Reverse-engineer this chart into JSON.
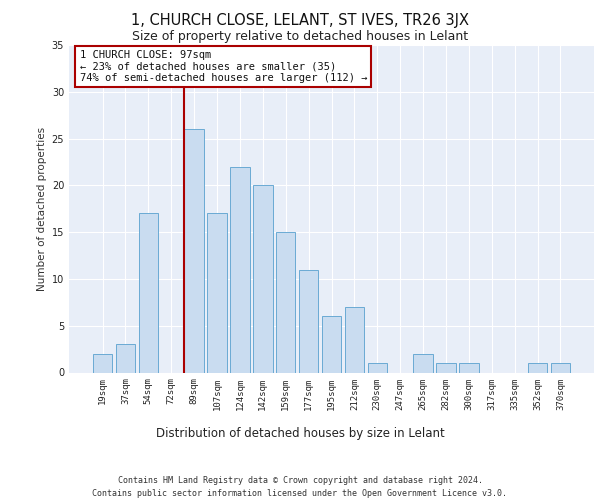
{
  "title1": "1, CHURCH CLOSE, LELANT, ST IVES, TR26 3JX",
  "title2": "Size of property relative to detached houses in Lelant",
  "xlabel": "Distribution of detached houses by size in Lelant",
  "ylabel": "Number of detached properties",
  "bar_labels": [
    "19sqm",
    "37sqm",
    "54sqm",
    "72sqm",
    "89sqm",
    "107sqm",
    "124sqm",
    "142sqm",
    "159sqm",
    "177sqm",
    "195sqm",
    "212sqm",
    "230sqm",
    "247sqm",
    "265sqm",
    "282sqm",
    "300sqm",
    "317sqm",
    "335sqm",
    "352sqm",
    "370sqm"
  ],
  "bar_values": [
    2,
    3,
    17,
    0,
    26,
    17,
    22,
    20,
    15,
    11,
    6,
    7,
    1,
    0,
    2,
    1,
    1,
    0,
    0,
    1,
    1
  ],
  "bar_color": "#c9dcf0",
  "bar_edgecolor": "#6aaad4",
  "vline_x_index": 4,
  "vline_color": "#aa0000",
  "annotation_text": "1 CHURCH CLOSE: 97sqm\n← 23% of detached houses are smaller (35)\n74% of semi-detached houses are larger (112) →",
  "annotation_box_edgecolor": "#aa0000",
  "ylim": [
    0,
    35
  ],
  "yticks": [
    0,
    5,
    10,
    15,
    20,
    25,
    30,
    35
  ],
  "footer": "Contains HM Land Registry data © Crown copyright and database right 2024.\nContains public sector information licensed under the Open Government Licence v3.0.",
  "plot_bg_color": "#e8eef8",
  "fig_bg_color": "#ffffff",
  "grid_color": "#ffffff",
  "title1_fontsize": 10.5,
  "title2_fontsize": 9,
  "ylabel_fontsize": 7.5,
  "xlabel_fontsize": 8.5,
  "tick_fontsize": 6.5,
  "footer_fontsize": 6,
  "annotation_fontsize": 7.5
}
